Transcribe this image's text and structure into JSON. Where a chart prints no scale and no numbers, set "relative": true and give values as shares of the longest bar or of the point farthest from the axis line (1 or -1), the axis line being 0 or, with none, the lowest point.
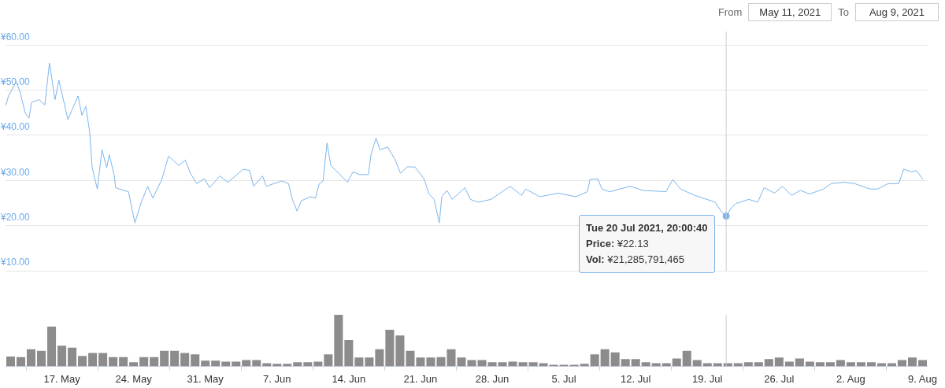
{
  "chart_data": [
    {
      "type": "line",
      "tick_labels": "y",
      "grid": "y",
      "legend": false,
      "xlim": [
        "2021-05-11T12:00",
        "2021-08-09T12:00"
      ],
      "ylim": [
        10,
        63
      ],
      "yticks": [
        {
          "value": 10,
          "label": "¥10.00"
        },
        {
          "value": 20,
          "label": "¥20.00"
        },
        {
          "value": 30,
          "label": "¥30.00"
        },
        {
          "value": 40,
          "label": "¥40.00"
        },
        {
          "value": 50,
          "label": "¥50.00"
        },
        {
          "value": 60,
          "label": "¥60.00"
        }
      ],
      "series": [
        {
          "color": "#7cb5ec",
          "x": [
            "2021-05-11T13:00",
            "2021-05-11T19:00",
            "2021-05-12T13:00",
            "2021-05-12T22:00",
            "2021-05-13T10:00",
            "2021-05-13T19:00",
            "2021-05-14T01:00",
            "2021-05-14T19:00",
            "2021-05-15T08:00",
            "2021-05-15T19:00",
            "2021-05-16T08:00",
            "2021-05-16T17:00",
            "2021-05-17T05:00",
            "2021-05-17T14:00",
            "2021-05-18T14:00",
            "2021-05-18T23:00",
            "2021-05-19T08:00",
            "2021-05-19T17:00",
            "2021-05-19T23:00",
            "2021-05-20T11:00",
            "2021-05-20T22:00",
            "2021-05-21T09:00",
            "2021-05-21T15:00",
            "2021-05-22T03:00",
            "2021-05-22T06:00",
            "2021-05-22T15:00",
            "2021-05-23T12:00",
            "2021-05-24T03:00",
            "2021-05-24T18:00",
            "2021-05-25T09:00",
            "2021-05-25T21:00",
            "2021-05-26T18:00",
            "2021-05-27T10:00",
            "2021-05-28T10:00",
            "2021-05-29T01:00",
            "2021-05-29T13:00",
            "2021-05-30T04:00",
            "2021-05-30T22:00",
            "2021-05-31T10:00",
            "2021-06-01T10:00",
            "2021-06-02T05:00",
            "2021-06-03T17:00",
            "2021-06-04T08:00",
            "2021-06-04T17:00",
            "2021-06-05T14:00",
            "2021-06-05T23:00",
            "2021-06-07T11:00",
            "2021-06-08T03:00",
            "2021-06-08T12:00",
            "2021-06-08T23:00",
            "2021-06-09T09:00",
            "2021-06-10T06:00",
            "2021-06-10T18:00",
            "2021-06-11T03:00",
            "2021-06-11T12:00",
            "2021-06-11T21:00",
            "2021-06-12T06:00",
            "2021-06-12T18:00",
            "2021-06-13T21:00",
            "2021-06-14T10:00",
            "2021-06-15T01:00",
            "2021-06-15T22:00",
            "2021-06-16T04:00",
            "2021-06-16T16:00",
            "2021-06-17T01:00",
            "2021-06-17T19:00",
            "2021-06-18T13:00",
            "2021-06-19T01:00",
            "2021-06-19T17:00",
            "2021-06-20T11:00",
            "2021-06-21T08:00",
            "2021-06-21T20:00",
            "2021-06-22T08:00",
            "2021-06-22T20:00",
            "2021-06-23T02:00",
            "2021-06-23T14:00",
            "2021-06-24T02:00",
            "2021-06-25T08:00",
            "2021-06-25T21:00",
            "2021-06-26T15:00",
            "2021-06-27T21:00",
            "2021-06-29T18:00",
            "2021-06-30T21:00",
            "2021-07-01T06:00",
            "2021-07-02T16:00",
            "2021-07-04T10:00",
            "2021-07-06T04:00",
            "2021-07-07T07:00",
            "2021-07-07T13:00",
            "2021-07-08T07:00",
            "2021-07-08T17:00",
            "2021-07-09T11:00",
            "2021-07-10T11:00",
            "2021-07-11T11:00",
            "2021-07-12T17:00",
            "2021-07-14T23:00",
            "2021-07-15T15:00",
            "2021-07-16T09:00",
            "2021-07-17T18:00",
            "2021-07-19T18:00",
            "2021-07-20T10:00",
            "2021-07-20T20:00",
            "2021-07-21T07:00",
            "2021-07-21T19:00",
            "2021-07-23T01:00",
            "2021-07-23T22:00",
            "2021-07-24T13:00",
            "2021-07-25T13:00",
            "2021-07-26T08:00",
            "2021-07-27T05:00",
            "2021-07-28T02:00",
            "2021-07-28T23:00",
            "2021-07-30T08:00",
            "2021-07-31T02:00",
            "2021-08-01T09:00",
            "2021-08-02T09:00",
            "2021-08-03T21:00",
            "2021-08-04T15:00",
            "2021-08-05T15:00",
            "2021-08-06T16:00",
            "2021-08-07T04:00",
            "2021-08-07T22:00",
            "2021-08-08T10:00",
            "2021-08-09T01:00"
          ],
          "values": [
            46.7,
            48.7,
            51.9,
            49.6,
            45.0,
            43.8,
            47.3,
            47.9,
            46.7,
            56.0,
            47.9,
            52.2,
            47.3,
            43.5,
            48.7,
            44.4,
            46.4,
            40.9,
            32.8,
            28.1,
            36.8,
            32.8,
            35.7,
            31.0,
            28.4,
            28.1,
            27.5,
            20.6,
            25.2,
            28.7,
            26.1,
            30.2,
            35.4,
            33.3,
            34.5,
            31.6,
            29.3,
            30.4,
            28.4,
            31.0,
            29.6,
            32.5,
            32.2,
            28.7,
            31.0,
            28.7,
            29.9,
            29.3,
            25.8,
            23.2,
            25.5,
            26.4,
            26.1,
            29.3,
            29.9,
            38.3,
            33.3,
            32.2,
            29.6,
            31.9,
            31.3,
            31.3,
            35.7,
            39.4,
            36.8,
            37.4,
            34.5,
            31.6,
            33.0,
            33.0,
            30.4,
            27.0,
            25.8,
            20.6,
            26.4,
            27.8,
            25.8,
            28.4,
            25.8,
            25.2,
            25.8,
            28.7,
            26.7,
            28.1,
            26.4,
            27.2,
            26.4,
            27.5,
            30.2,
            30.4,
            28.1,
            27.5,
            28.1,
            28.7,
            27.8,
            27.5,
            30.2,
            28.1,
            26.7,
            25.2,
            22.9,
            22.1,
            23.8,
            24.9,
            25.8,
            25.2,
            28.4,
            27.2,
            28.7,
            26.7,
            27.8,
            27.0,
            28.1,
            29.3,
            29.6,
            29.3,
            28.1,
            28.1,
            29.3,
            29.3,
            32.5,
            31.9,
            32.2,
            30.2
          ]
        },
        {
          "type": "scatter",
          "color": "#7cb5ec",
          "x": [
            "2021-07-20T20:00"
          ],
          "values": [
            22.1
          ]
        }
      ],
      "ref_lines": [
        {
          "axis": "x",
          "value": "2021-07-20T20:00",
          "color": "#cccccc"
        }
      ],
      "annotations": [
        "From",
        "May 11, 2021",
        "To",
        "Aug 9, 2021",
        {
          "text": "Tue 20 Jul 2021, 20:00:40",
          "x": "2021-07-20T20:00",
          "y": 22.1
        },
        "Price: ¥22.13",
        "Vol: ¥21,285,791,465"
      ]
    },
    {
      "type": "bar",
      "relative": true,
      "tick_labels": "x",
      "grid": false,
      "legend": false,
      "xlim": [
        "2021-05-11T12:00",
        "2021-08-09T12:00"
      ],
      "xticks": [
        {
          "value": "2021-05-17",
          "label": "17. May"
        },
        {
          "value": "2021-05-24",
          "label": "24. May"
        },
        {
          "value": "2021-05-31",
          "label": "31. May"
        },
        {
          "value": "2021-06-07",
          "label": "7. Jun"
        },
        {
          "value": "2021-06-14",
          "label": "14. Jun"
        },
        {
          "value": "2021-06-21",
          "label": "21. Jun"
        },
        {
          "value": "2021-06-28",
          "label": "28. Jun"
        },
        {
          "value": "2021-07-05",
          "label": "5. Jul"
        },
        {
          "value": "2021-07-12",
          "label": "12. Jul"
        },
        {
          "value": "2021-07-19",
          "label": "19. Jul"
        },
        {
          "value": "2021-07-26",
          "label": "26. Jul"
        },
        {
          "value": "2021-08-02",
          "label": "2. Aug"
        },
        {
          "value": "2021-08-09",
          "label": "9. Aug"
        }
      ],
      "series": [
        {
          "color": "#8c8c8c",
          "x": [
            "2021-05-12",
            "2021-05-13",
            "2021-05-14",
            "2021-05-15",
            "2021-05-16",
            "2021-05-17",
            "2021-05-18",
            "2021-05-19",
            "2021-05-20",
            "2021-05-21",
            "2021-05-22",
            "2021-05-23",
            "2021-05-24",
            "2021-05-25",
            "2021-05-26",
            "2021-05-27",
            "2021-05-28",
            "2021-05-29",
            "2021-05-30",
            "2021-05-31",
            "2021-06-01",
            "2021-06-02",
            "2021-06-03",
            "2021-06-04",
            "2021-06-05",
            "2021-06-06",
            "2021-06-07",
            "2021-06-08",
            "2021-06-09",
            "2021-06-10",
            "2021-06-11",
            "2021-06-12",
            "2021-06-13",
            "2021-06-14",
            "2021-06-15",
            "2021-06-16",
            "2021-06-17",
            "2021-06-18",
            "2021-06-19",
            "2021-06-20",
            "2021-06-21",
            "2021-06-22",
            "2021-06-23",
            "2021-06-24",
            "2021-06-25",
            "2021-06-26",
            "2021-06-27",
            "2021-06-28",
            "2021-06-29",
            "2021-06-30",
            "2021-07-01",
            "2021-07-02",
            "2021-07-03",
            "2021-07-04",
            "2021-07-05",
            "2021-07-06",
            "2021-07-07",
            "2021-07-08",
            "2021-07-09",
            "2021-07-10",
            "2021-07-11",
            "2021-07-12",
            "2021-07-13",
            "2021-07-14",
            "2021-07-15",
            "2021-07-16",
            "2021-07-17",
            "2021-07-18",
            "2021-07-19",
            "2021-07-20",
            "2021-07-21",
            "2021-07-22",
            "2021-07-23",
            "2021-07-24",
            "2021-07-25",
            "2021-07-26",
            "2021-07-27",
            "2021-07-28",
            "2021-07-29",
            "2021-07-30",
            "2021-07-31",
            "2021-08-01",
            "2021-08-02",
            "2021-08-03",
            "2021-08-04",
            "2021-08-05",
            "2021-08-06",
            "2021-08-07",
            "2021-08-08",
            "2021-08-09"
          ],
          "values": [
            0.19,
            0.18,
            0.33,
            0.3,
            0.77,
            0.4,
            0.36,
            0.2,
            0.26,
            0.26,
            0.18,
            0.18,
            0.08,
            0.18,
            0.18,
            0.3,
            0.3,
            0.26,
            0.23,
            0.11,
            0.11,
            0.09,
            0.09,
            0.12,
            0.12,
            0.06,
            0.05,
            0.05,
            0.08,
            0.08,
            0.09,
            0.23,
            1,
            0.51,
            0.17,
            0.17,
            0.33,
            0.71,
            0.6,
            0.3,
            0.17,
            0.17,
            0.18,
            0.33,
            0.17,
            0.12,
            0.12,
            0.08,
            0.08,
            0.09,
            0.08,
            0.08,
            0.06,
            0.03,
            0.03,
            0.03,
            0.05,
            0.23,
            0.33,
            0.27,
            0.14,
            0.14,
            0.08,
            0.06,
            0.06,
            0.15,
            0.3,
            0.12,
            0.06,
            0.06,
            0.06,
            0.06,
            0.08,
            0.08,
            0.14,
            0.17,
            0.09,
            0.15,
            0.09,
            0.08,
            0.08,
            0.12,
            0.08,
            0.08,
            0.08,
            0.06,
            0.06,
            0.12,
            0.17,
            0.12
          ]
        }
      ],
      "ref_lines": [
        {
          "axis": "x",
          "value": "2021-07-20T20:00",
          "color": "#cccccc"
        }
      ]
    }
  ]
}
